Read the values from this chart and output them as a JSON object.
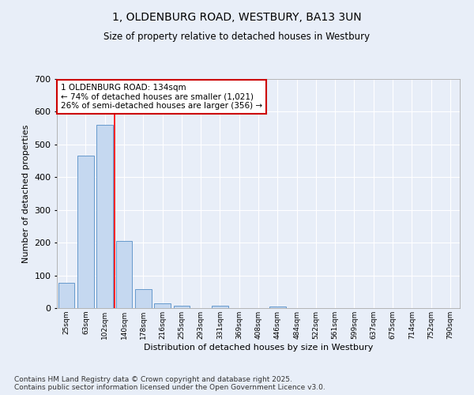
{
  "title": "1, OLDENBURG ROAD, WESTBURY, BA13 3UN",
  "subtitle": "Size of property relative to detached houses in Westbury",
  "xlabel": "Distribution of detached houses by size in Westbury",
  "ylabel": "Number of detached properties",
  "categories": [
    "25sqm",
    "63sqm",
    "102sqm",
    "140sqm",
    "178sqm",
    "216sqm",
    "255sqm",
    "293sqm",
    "331sqm",
    "369sqm",
    "408sqm",
    "446sqm",
    "484sqm",
    "522sqm",
    "561sqm",
    "599sqm",
    "637sqm",
    "675sqm",
    "714sqm",
    "752sqm",
    "790sqm"
  ],
  "values": [
    78,
    467,
    560,
    206,
    57,
    15,
    7,
    0,
    7,
    0,
    0,
    5,
    0,
    0,
    0,
    0,
    0,
    0,
    0,
    0,
    0
  ],
  "bar_color": "#c5d8f0",
  "bar_edge_color": "#6699cc",
  "ylim": [
    0,
    700
  ],
  "yticks": [
    0,
    100,
    200,
    300,
    400,
    500,
    600,
    700
  ],
  "red_line_x": 2.5,
  "annotation_text": "1 OLDENBURG ROAD: 134sqm\n← 74% of detached houses are smaller (1,021)\n26% of semi-detached houses are larger (356) →",
  "annotation_box_color": "#ffffff",
  "annotation_box_edge": "#cc0000",
  "footer": "Contains HM Land Registry data © Crown copyright and database right 2025.\nContains public sector information licensed under the Open Government Licence v3.0.",
  "background_color": "#e8eef8",
  "plot_bg_color": "#e8eef8",
  "grid_color": "#ffffff"
}
